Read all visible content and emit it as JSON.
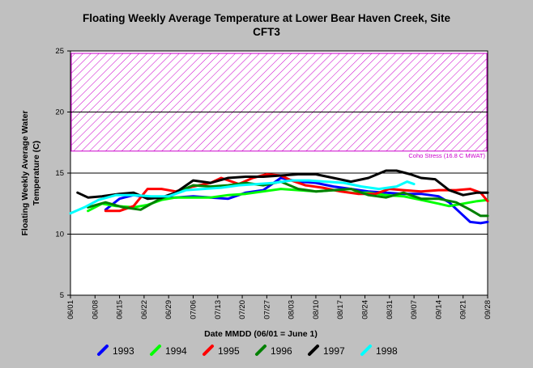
{
  "chart_data": {
    "type": "line",
    "title_line1": "Floating Weekly Average Temperature at Lower Bear Haven Creek, Site",
    "title_line2": "CFT3",
    "xlabel": "Date MMDD (06/01 = June 1)",
    "ylabel_line1": "Floating Weekly Average Water",
    "ylabel_line2": "Temperature (C)",
    "ylim": [
      5,
      25
    ],
    "yticks": [
      5,
      10,
      15,
      20,
      25
    ],
    "xlim": [
      0,
      119
    ],
    "xticks": [
      {
        "day": 0,
        "label": "06/01"
      },
      {
        "day": 7,
        "label": "06/08"
      },
      {
        "day": 14,
        "label": "06/15"
      },
      {
        "day": 21,
        "label": "06/22"
      },
      {
        "day": 28,
        "label": "06/29"
      },
      {
        "day": 35,
        "label": "07/06"
      },
      {
        "day": 42,
        "label": "07/13"
      },
      {
        "day": 49,
        "label": "07/20"
      },
      {
        "day": 56,
        "label": "07/27"
      },
      {
        "day": 63,
        "label": "08/03"
      },
      {
        "day": 70,
        "label": "08/10"
      },
      {
        "day": 77,
        "label": "08/17"
      },
      {
        "day": 84,
        "label": "08/24"
      },
      {
        "day": 91,
        "label": "08/31"
      },
      {
        "day": 98,
        "label": "09/07"
      },
      {
        "day": 105,
        "label": "09/14"
      },
      {
        "day": 112,
        "label": "09/21"
      },
      {
        "day": 119,
        "label": "09/28"
      }
    ],
    "gridlines_y": [
      10,
      15,
      20
    ],
    "stress_band": {
      "from": 16.8,
      "to": 25,
      "color": "#cc00cc",
      "label": "Coho Stress (16.8 C MWAT)"
    },
    "series": [
      {
        "name": "1993",
        "color": "#0000ff",
        "x": [
          10,
          14,
          18,
          22,
          26,
          30,
          35,
          40,
          45,
          50,
          55,
          60,
          65,
          70,
          75,
          80,
          85,
          90,
          95,
          100,
          105,
          108,
          111,
          114,
          117,
          119
        ],
        "y": [
          12.0,
          12.9,
          13.2,
          13.0,
          13.0,
          13.0,
          13.1,
          13.0,
          12.9,
          13.4,
          13.6,
          14.6,
          14.3,
          14.2,
          13.9,
          13.7,
          13.5,
          13.4,
          13.3,
          13.3,
          13.1,
          12.6,
          11.8,
          11.0,
          10.9,
          11.0
        ]
      },
      {
        "name": "1994",
        "color": "#00ff00",
        "x": [
          5,
          9,
          13,
          18,
          22,
          26,
          30,
          35,
          40,
          45,
          50,
          55,
          60,
          65,
          70,
          75,
          80,
          85,
          90,
          95,
          100,
          105,
          108,
          112,
          116,
          119
        ],
        "y": [
          11.9,
          12.5,
          12.3,
          12.2,
          12.4,
          12.8,
          13.0,
          13.0,
          13.0,
          13.2,
          13.3,
          13.5,
          13.7,
          13.6,
          13.5,
          13.6,
          13.4,
          13.4,
          13.2,
          13.1,
          12.8,
          12.5,
          12.3,
          12.5,
          12.7,
          12.8
        ]
      },
      {
        "name": "1995",
        "color": "#ff0000",
        "x": [
          10,
          14,
          18,
          22,
          26,
          30,
          35,
          40,
          43,
          48,
          52,
          56,
          60,
          63,
          67,
          72,
          77,
          82,
          87,
          91,
          95,
          100,
          105,
          110,
          114,
          117,
          119
        ],
        "y": [
          11.9,
          11.9,
          12.3,
          13.7,
          13.7,
          13.5,
          13.9,
          14.2,
          14.6,
          14.1,
          14.6,
          14.9,
          14.8,
          14.4,
          14.0,
          13.8,
          13.5,
          13.3,
          13.3,
          13.7,
          13.6,
          13.5,
          13.6,
          13.6,
          13.7,
          13.4,
          12.7
        ]
      },
      {
        "name": "1996",
        "color": "#008000",
        "x": [
          5,
          10,
          15,
          20,
          25,
          30,
          35,
          40,
          45,
          50,
          55,
          60,
          65,
          70,
          75,
          80,
          85,
          90,
          95,
          100,
          105,
          110,
          114,
          117,
          119
        ],
        "y": [
          12.2,
          12.6,
          12.2,
          12.0,
          12.8,
          13.4,
          14.0,
          13.9,
          14.0,
          14.2,
          14.0,
          14.3,
          13.7,
          13.5,
          13.6,
          13.7,
          13.2,
          13.0,
          13.4,
          12.9,
          12.9,
          12.6,
          12.0,
          11.5,
          11.5
        ]
      },
      {
        "name": "1997",
        "color": "#000000",
        "x": [
          2,
          5,
          9,
          14,
          18,
          22,
          26,
          30,
          35,
          40,
          45,
          50,
          55,
          60,
          65,
          70,
          75,
          80,
          85,
          90,
          93,
          97,
          100,
          104,
          108,
          112,
          116,
          119
        ],
        "y": [
          13.4,
          13.0,
          13.1,
          13.3,
          13.4,
          12.9,
          13.0,
          13.4,
          14.4,
          14.2,
          14.6,
          14.7,
          14.7,
          14.8,
          14.9,
          14.9,
          14.6,
          14.3,
          14.6,
          15.2,
          15.2,
          14.9,
          14.6,
          14.5,
          13.6,
          13.2,
          13.4,
          13.4
        ]
      },
      {
        "name": "1998",
        "color": "#00ffff",
        "x": [
          0,
          4,
          8,
          13,
          18,
          23,
          28,
          33,
          38,
          43,
          48,
          53,
          58,
          63,
          68,
          73,
          78,
          83,
          88,
          93,
          96,
          98
        ],
        "y": [
          11.7,
          12.2,
          12.8,
          13.2,
          13.2,
          13.1,
          13.1,
          13.6,
          13.7,
          13.8,
          14.0,
          14.1,
          14.2,
          14.4,
          14.4,
          14.3,
          14.2,
          13.9,
          13.7,
          13.9,
          14.3,
          14.1
        ]
      }
    ]
  }
}
